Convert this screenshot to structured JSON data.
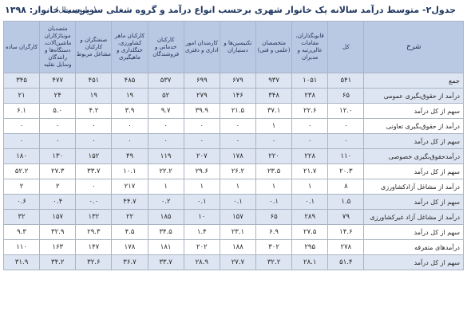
{
  "title": "جدول۲- متوسط درآمد سالانه یک خانوار شهری برحسب انواع درآمد و گروه شغلی سرپرست خانوار: ۱۳۹۸",
  "unit": "(میلیون ریال)",
  "columns": [
    "شرح",
    "کل",
    "قانونگذاران، مقامات عالی‌رتبه و مدیران",
    "متخصصان (علمی و فنی)",
    "تکنیسین‌ها و دستیاران",
    "کارمندان امور اداری و دفتری",
    "کارکنان خدماتی و فروشندگان",
    "کارکنان ماهر کشاورزی، جنگلداری و ماهیگیری",
    "صنعتگران و کارکنان مشاغل مربوط",
    "متصدیان مونتاژکاران ماشین‌آلات، دستگاه‌ها و رانندگان وسایل نقلیه",
    "کارگران ساده"
  ],
  "rows": [
    {
      "label": "جمع",
      "values": [
        "۵۴۱",
        "۱۰۵۱",
        "۹۳۷",
        "۶۷۹",
        "۶۹۹",
        "۵۳۷",
        "۴۸۵",
        "۴۵۱",
        "۴۷۷",
        "۳۴۵"
      ]
    },
    {
      "label": "درآمد از حقوق‌بگیری عمومی",
      "values": [
        "۶۵",
        "۲۳۸",
        "۳۴۸",
        "۱۴۶",
        "۲۷۹",
        "۵۲",
        "۱۹",
        "۱۹",
        "۲۴",
        "۲۱"
      ]
    },
    {
      "label": "سهم از کل درآمد",
      "values": [
        "۱۲.۰",
        "۲۲.۶",
        "۳۷.۱",
        "۲۱.۵",
        "۳۹.۹",
        "۹.۷",
        "۳.۹",
        "۴.۲",
        "۵.۰",
        "۶.۱"
      ]
    },
    {
      "label": "درآمد از حقوق‌بگیری تعاونی",
      "values": [
        "۰",
        "۰",
        "۱",
        "۰",
        "۰",
        "۰",
        "۰",
        "۰",
        "۰",
        "۰"
      ]
    },
    {
      "label": "سهم از کل درآمد",
      "values": [
        "۰",
        "۰",
        "۰",
        "۰",
        "۰",
        "۰",
        "۰",
        "۰",
        "۰",
        "۰"
      ]
    },
    {
      "label": "درآمدحقوق‌بگیری خصوصی",
      "values": [
        "۱۱۰",
        "۲۲۸",
        "۲۲۰",
        "۱۷۸",
        "۲۰۷",
        "۱۱۹",
        "۴۹",
        "۱۵۲",
        "۱۳۰",
        "۱۸۰"
      ]
    },
    {
      "label": "سهم از کل درآمد",
      "values": [
        "۲۰.۳",
        "۲۱.۷",
        "۲۳.۵",
        "۲۶.۲",
        "۲۹.۶",
        "۲۲.۲",
        "۱۰.۱",
        "۳۳.۷",
        "۲۷.۳",
        "۵۲.۲"
      ]
    },
    {
      "label": "درآمد از مشاغل آزادکشاورزی",
      "values": [
        "۸",
        "۱",
        "۱",
        "۱",
        "۱",
        "۱",
        "۲۱۷",
        "۰",
        "۲",
        "۲"
      ]
    },
    {
      "label": "سهم از کل درآمد",
      "values": [
        "۱.۵",
        "۰.۱",
        "۰.۱",
        "۰.۱",
        "۰.۱",
        "۰.۲",
        "۴۴.۷",
        "۰.۰",
        "۰.۴",
        "۰.۶"
      ]
    },
    {
      "label": "درآمد از مشاغل آزاد غیرکشاورزی",
      "values": [
        "۷۹",
        "۲۸۹",
        "۶۵",
        "۱۵۷",
        "۱۰",
        "۱۸۵",
        "۲۲",
        "۱۳۲",
        "۱۵۷",
        "۳۲"
      ]
    },
    {
      "label": "سهم از کل درآمد",
      "values": [
        "۱۴.۶",
        "۲۷.۵",
        "۶.۹",
        "۲۳.۱",
        "۱.۴",
        "۳۴.۵",
        "۴.۵",
        "۲۹.۳",
        "۳۲.۹",
        "۹.۳"
      ]
    },
    {
      "label": "درآمدهای متفرقه",
      "values": [
        "۲۷۸",
        "۲۹۵",
        "۳۰۲",
        "۱۸۸",
        "۲۰۲",
        "۱۸۱",
        "۱۷۸",
        "۱۴۷",
        "۱۶۳",
        "۱۱۰"
      ]
    },
    {
      "label": "سهم از کل درآمد",
      "values": [
        "۵۱.۴",
        "۲۸.۱",
        "۳۲.۲",
        "۲۷.۷",
        "۲۸.۹",
        "۳۳.۷",
        "۳۶.۷",
        "۳۲.۶",
        "۳۴.۲",
        "۳۱.۹"
      ]
    }
  ]
}
